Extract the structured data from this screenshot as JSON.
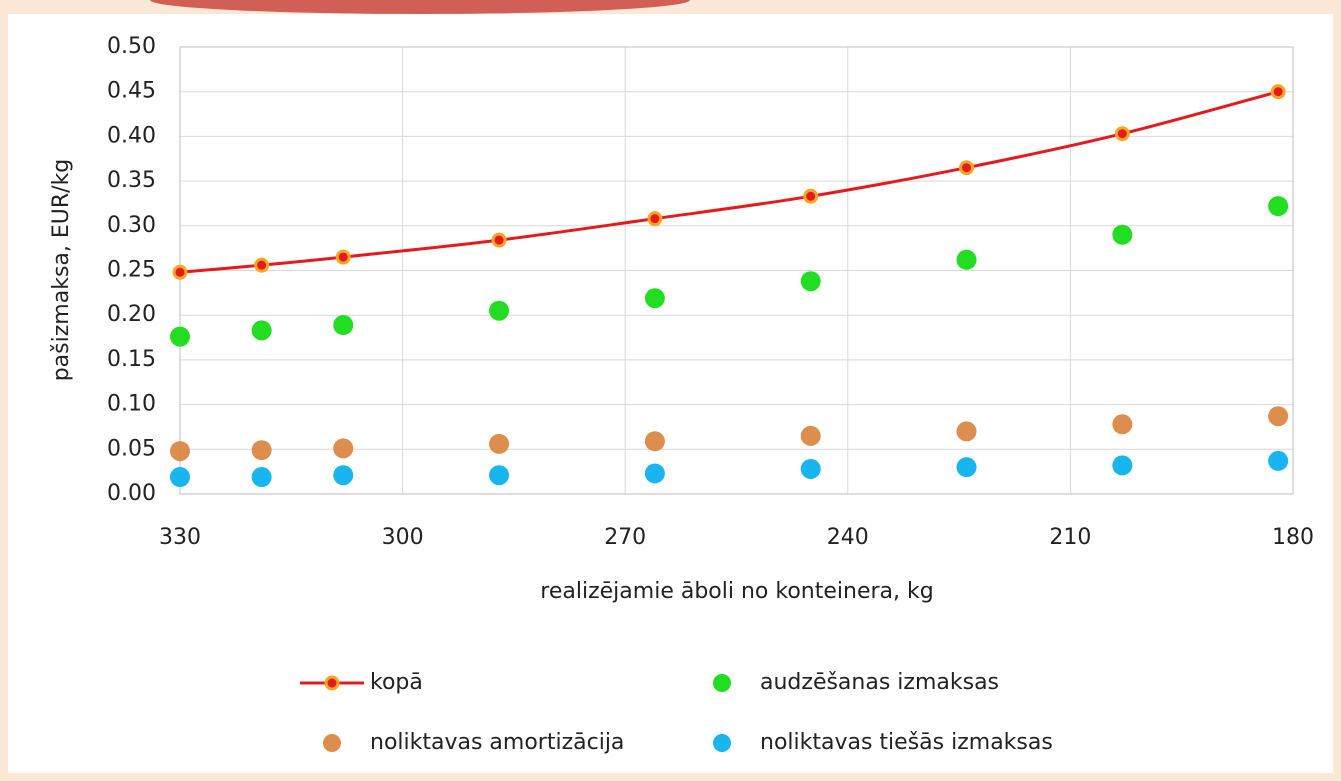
{
  "chart_data": {
    "type": "scatter",
    "x_label": "realizējamie āboli no konteinera, kg",
    "y_label": "pašizmaksa, EUR/kg",
    "x": [
      330,
      319,
      308,
      287,
      266,
      245,
      224,
      203,
      182
    ],
    "series": [
      {
        "name": "kopā",
        "color": "#e41a1c",
        "marker_edge": "#f5a623",
        "mode": "line+markers",
        "values": [
          0.248,
          0.256,
          0.265,
          0.284,
          0.308,
          0.333,
          0.365,
          0.403,
          0.45
        ]
      },
      {
        "name": "audzēšanas izmaksas",
        "color": "#22dd22",
        "mode": "markers",
        "values": [
          0.176,
          0.183,
          0.189,
          0.205,
          0.219,
          0.238,
          0.262,
          0.29,
          0.322
        ]
      },
      {
        "name": "noliktavas amortizācija",
        "color": "#d9823b",
        "mode": "markers",
        "values": [
          0.048,
          0.049,
          0.051,
          0.056,
          0.059,
          0.065,
          0.07,
          0.078,
          0.087
        ]
      },
      {
        "name": "noliktavas tiešās izmaksas",
        "color": "#19b5ee",
        "mode": "markers",
        "values": [
          0.019,
          0.019,
          0.021,
          0.021,
          0.023,
          0.028,
          0.03,
          0.032,
          0.037
        ]
      }
    ],
    "xlim": [
      330,
      180
    ],
    "xticks": [
      330,
      300,
      270,
      240,
      210,
      180
    ],
    "ylim": [
      0,
      0.5
    ],
    "yticks": [
      {
        "value": 0,
        "label": "0.00"
      },
      {
        "value": 0.05,
        "label": "0.05"
      },
      {
        "value": 0.1,
        "label": "0.10"
      },
      {
        "value": 0.15,
        "label": "0.15"
      },
      {
        "value": 0.2,
        "label": "0.20"
      },
      {
        "value": 0.25,
        "label": "0.25"
      },
      {
        "value": 0.3,
        "label": "0.30"
      },
      {
        "value": 0.35,
        "label": "0.35"
      },
      {
        "value": 0.4,
        "label": "0.40"
      },
      {
        "value": 0.45,
        "label": "0.45"
      },
      {
        "value": 0.5,
        "label": "0.50"
      }
    ],
    "grid": true,
    "legend": "bottom"
  }
}
